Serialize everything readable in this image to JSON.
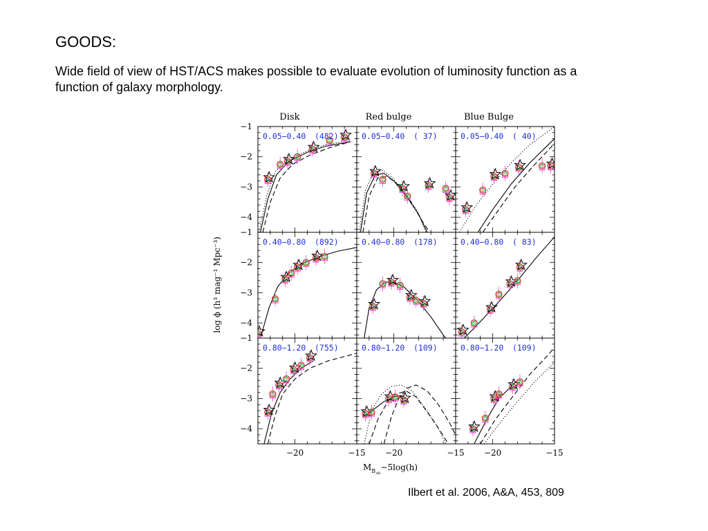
{
  "slide": {
    "title": "GOODS:",
    "text": "Wide field of view of HST/ACS makes possible to evaluate evolution of luminosity function as a function of galaxy morphology.",
    "citation": "Ilbert et al. 2006, A&A, 453, 809"
  },
  "colors": {
    "panel_label": "#1f2fd6",
    "model_line": "#000000",
    "circle_points": "#e8342d",
    "square_points": "#e14ce0",
    "triangle_points": "#3ccc2e",
    "star_points": "#000000"
  },
  "chart_data": {
    "type": "scatter",
    "layout": "3x3 grid of panels with shared axes",
    "column_titles": [
      "Disk",
      "Red bulge",
      "Blue Bulge"
    ],
    "xlabel_main": "M",
    "xlabel_sub": "B",
    "xlabel_subsub": "AB",
    "xlabel_rest": "−5log(h)",
    "ylabel": "log ϕ  (h³ mag⁻¹ Mpc⁻³)",
    "xlim": [
      -23,
      -15
    ],
    "ylim": [
      -4.5,
      -1
    ],
    "x_ticks": [
      "−20",
      "−15"
    ],
    "x_tick_values": [
      -20,
      -15
    ],
    "y_ticks": [
      "−1",
      "−2",
      "−3",
      "−4"
    ],
    "y_tick_values": [
      -1,
      -2,
      -3,
      -4
    ],
    "grid": false,
    "panels": [
      {
        "row": 0,
        "col": 0,
        "z_range": "0.05−0.40",
        "count": "(482)",
        "points": [
          [
            -22.2,
            -2.75
          ],
          [
            -21.2,
            -2.25
          ],
          [
            -20.6,
            -2.15
          ],
          [
            -19.8,
            -2.0
          ],
          [
            -18.6,
            -1.75
          ],
          [
            -17.2,
            -1.45
          ],
          [
            -16.0,
            -1.35
          ]
        ],
        "lines": [
          {
            "style": "solid",
            "points": [
              [
                -22.8,
                -4.5
              ],
              [
                -22.2,
                -3.4
              ],
              [
                -21.5,
                -2.6
              ],
              [
                -20.5,
                -2.15
              ],
              [
                -19.0,
                -1.85
              ],
              [
                -17.5,
                -1.65
              ],
              [
                -15.5,
                -1.5
              ]
            ]
          },
          {
            "style": "dashed",
            "points": [
              [
                -22.6,
                -4.5
              ],
              [
                -22.0,
                -3.5
              ],
              [
                -21.2,
                -2.7
              ],
              [
                -20.2,
                -2.25
              ],
              [
                -18.8,
                -1.95
              ],
              [
                -17.2,
                -1.7
              ],
              [
                -15.5,
                -1.5
              ]
            ]
          },
          {
            "style": "dotted",
            "points": [
              [
                -22.9,
                -4.5
              ],
              [
                -22.3,
                -3.3
              ],
              [
                -21.6,
                -2.5
              ],
              [
                -20.6,
                -2.1
              ],
              [
                -19.1,
                -1.82
              ],
              [
                -17.5,
                -1.6
              ],
              [
                -15.5,
                -1.45
              ]
            ]
          }
        ]
      },
      {
        "row": 0,
        "col": 1,
        "z_range": "0.05−0.40",
        "count": "(  37)",
        "points": [
          [
            -21.6,
            -2.55
          ],
          [
            -20.9,
            -2.75
          ],
          [
            -19.3,
            -3.05
          ],
          [
            -18.9,
            -3.3
          ],
          [
            -17.2,
            -2.95
          ],
          [
            -15.8,
            -3.05
          ],
          [
            -15.5,
            -3.35
          ]
        ],
        "lines": [
          {
            "style": "solid",
            "points": [
              [
                -22.7,
                -4.5
              ],
              [
                -22.2,
                -3.2
              ],
              [
                -21.5,
                -2.6
              ],
              [
                -20.8,
                -2.55
              ],
              [
                -20.0,
                -2.8
              ],
              [
                -19.0,
                -3.3
              ],
              [
                -18.0,
                -3.9
              ],
              [
                -17.3,
                -4.5
              ]
            ]
          },
          {
            "style": "dashed",
            "points": [
              [
                -22.5,
                -4.5
              ],
              [
                -22.0,
                -3.3
              ],
              [
                -21.3,
                -2.7
              ],
              [
                -20.5,
                -2.65
              ],
              [
                -19.6,
                -2.95
              ],
              [
                -18.6,
                -3.5
              ],
              [
                -17.6,
                -4.2
              ],
              [
                -17.1,
                -4.5
              ]
            ]
          },
          {
            "style": "dotted",
            "points": [
              [
                -22.8,
                -4.5
              ],
              [
                -22.3,
                -3.1
              ],
              [
                -21.6,
                -2.5
              ],
              [
                -20.9,
                -2.45
              ],
              [
                -20.1,
                -2.7
              ],
              [
                -19.1,
                -3.2
              ],
              [
                -18.1,
                -3.8
              ],
              [
                -17.4,
                -4.5
              ]
            ]
          }
        ]
      },
      {
        "row": 0,
        "col": 2,
        "z_range": "0.05−0.40",
        "count": "(  40)",
        "points": [
          [
            -22.2,
            -3.75
          ],
          [
            -20.8,
            -3.1
          ],
          [
            -19.9,
            -2.65
          ],
          [
            -19.0,
            -2.55
          ],
          [
            -17.9,
            -2.35
          ],
          [
            -16.0,
            -2.3
          ],
          [
            -15.3,
            -2.3
          ]
        ],
        "lines": [
          {
            "style": "solid",
            "points": [
              [
                -21.2,
                -4.5
              ],
              [
                -20.0,
                -3.75
              ],
              [
                -18.5,
                -2.9
              ],
              [
                -17.0,
                -2.2
              ],
              [
                -15.5,
                -1.6
              ],
              [
                -15.0,
                -1.4
              ]
            ]
          },
          {
            "style": "dashed",
            "points": [
              [
                -20.8,
                -4.5
              ],
              [
                -19.6,
                -3.8
              ],
              [
                -18.2,
                -3.0
              ],
              [
                -16.7,
                -2.3
              ],
              [
                -15.2,
                -1.65
              ],
              [
                -15.0,
                -1.55
              ]
            ]
          },
          {
            "style": "dotted",
            "points": [
              [
                -22.7,
                -4.5
              ],
              [
                -21.5,
                -3.7
              ],
              [
                -20.0,
                -2.9
              ],
              [
                -18.5,
                -2.2
              ],
              [
                -17.0,
                -1.6
              ],
              [
                -15.5,
                -1.15
              ],
              [
                -15.0,
                -1.0
              ]
            ]
          }
        ]
      },
      {
        "row": 1,
        "col": 0,
        "z_range": "0.40−0.80",
        "count": "(892)",
        "points": [
          [
            -23.0,
            -4.35
          ],
          [
            -21.6,
            -3.2
          ],
          [
            -20.8,
            -2.55
          ],
          [
            -20.3,
            -2.35
          ],
          [
            -19.8,
            -2.15
          ],
          [
            -19.1,
            -2.0
          ],
          [
            -18.3,
            -1.85
          ],
          [
            -17.6,
            -1.8
          ]
        ],
        "lines": [
          {
            "style": "solid",
            "points": [
              [
                -22.8,
                -4.5
              ],
              [
                -22.1,
                -3.5
              ],
              [
                -21.4,
                -2.8
              ],
              [
                -20.5,
                -2.35
              ],
              [
                -19.5,
                -2.05
              ],
              [
                -18.0,
                -1.8
              ],
              [
                -16.5,
                -1.62
              ],
              [
                -15.0,
                -1.5
              ]
            ]
          }
        ]
      },
      {
        "row": 1,
        "col": 1,
        "z_range": "0.40−0.80",
        "count": "(178)",
        "points": [
          [
            -21.7,
            -3.45
          ],
          [
            -20.9,
            -2.7
          ],
          [
            -20.2,
            -2.65
          ],
          [
            -19.5,
            -2.75
          ],
          [
            -18.7,
            -3.15
          ],
          [
            -18.2,
            -3.25
          ],
          [
            -17.6,
            -3.35
          ]
        ],
        "lines": [
          {
            "style": "solid",
            "points": [
              [
                -22.4,
                -4.5
              ],
              [
                -22.0,
                -3.5
              ],
              [
                -21.4,
                -2.9
              ],
              [
                -20.7,
                -2.65
              ],
              [
                -20.0,
                -2.65
              ],
              [
                -19.2,
                -2.8
              ],
              [
                -18.2,
                -3.2
              ],
              [
                -17.0,
                -3.8
              ],
              [
                -16.0,
                -4.4
              ],
              [
                -15.8,
                -4.5
              ]
            ]
          }
        ]
      },
      {
        "row": 1,
        "col": 2,
        "z_range": "0.40−0.80",
        "count": "(  83)",
        "points": [
          [
            -22.5,
            -4.3
          ],
          [
            -21.5,
            -4.0
          ],
          [
            -20.2,
            -3.55
          ],
          [
            -19.5,
            -3.05
          ],
          [
            -18.6,
            -2.7
          ],
          [
            -18.0,
            -2.6
          ],
          [
            -17.8,
            -2.15
          ]
        ],
        "lines": [
          {
            "style": "solid",
            "points": [
              [
                -22.3,
                -4.5
              ],
              [
                -21.0,
                -3.95
              ],
              [
                -19.5,
                -3.3
              ],
              [
                -18.0,
                -2.6
              ],
              [
                -16.5,
                -1.85
              ],
              [
                -15.0,
                -1.15
              ]
            ]
          }
        ]
      },
      {
        "row": 2,
        "col": 0,
        "z_range": "0.80−1.20",
        "count": "(755)",
        "points": [
          [
            -22.2,
            -3.45
          ],
          [
            -21.8,
            -2.85
          ],
          [
            -21.3,
            -2.55
          ],
          [
            -20.7,
            -2.35
          ],
          [
            -20.1,
            -2.05
          ],
          [
            -19.5,
            -1.9
          ],
          [
            -18.8,
            -1.65
          ]
        ],
        "lines": [
          {
            "style": "solid",
            "points": [
              [
                -22.5,
                -4.5
              ],
              [
                -21.9,
                -3.5
              ],
              [
                -21.2,
                -2.8
              ],
              [
                -20.4,
                -2.35
              ],
              [
                -19.5,
                -2.0
              ],
              [
                -18.5,
                -1.75
              ]
            ]
          },
          {
            "style": "dashed",
            "points": [
              [
                -22.2,
                -4.5
              ],
              [
                -21.6,
                -3.55
              ],
              [
                -21.0,
                -2.85
              ],
              [
                -20.0,
                -2.35
              ],
              [
                -18.8,
                -2.0
              ],
              [
                -17.3,
                -1.75
              ],
              [
                -15.0,
                -1.5
              ]
            ]
          }
        ]
      },
      {
        "row": 2,
        "col": 1,
        "z_range": "0.80−1.20",
        "count": "(109)",
        "points": [
          [
            -22.3,
            -3.5
          ],
          [
            -21.8,
            -3.45
          ],
          [
            -20.4,
            -3.0
          ],
          [
            -19.9,
            -2.95
          ],
          [
            -19.2,
            -3.05
          ]
        ],
        "lines": [
          {
            "style": "solid",
            "points": [
              [
                -22.3,
                -3.6
              ],
              [
                -21.6,
                -3.35
              ],
              [
                -20.8,
                -3.1
              ],
              [
                -20.0,
                -2.95
              ],
              [
                -19.4,
                -2.9
              ],
              [
                -19.0,
                -3.0
              ]
            ]
          },
          {
            "style": "dashed",
            "points": [
              [
                -22.0,
                -4.5
              ],
              [
                -21.3,
                -3.7
              ],
              [
                -20.5,
                -3.1
              ],
              [
                -19.8,
                -2.85
              ],
              [
                -19.0,
                -2.75
              ],
              [
                -18.2,
                -2.95
              ],
              [
                -17.2,
                -3.5
              ],
              [
                -16.2,
                -4.1
              ],
              [
                -15.6,
                -4.5
              ]
            ]
          },
          {
            "style": "dashed",
            "points": [
              [
                -20.8,
                -4.5
              ],
              [
                -20.2,
                -3.6
              ],
              [
                -19.6,
                -3.0
              ],
              [
                -18.9,
                -2.65
              ],
              [
                -18.2,
                -2.55
              ],
              [
                -17.3,
                -2.75
              ],
              [
                -16.4,
                -3.2
              ],
              [
                -15.5,
                -3.8
              ],
              [
                -15.0,
                -4.2
              ]
            ]
          },
          {
            "style": "dotted",
            "points": [
              [
                -22.4,
                -4.5
              ],
              [
                -21.8,
                -3.4
              ],
              [
                -21.0,
                -2.85
              ],
              [
                -20.2,
                -2.6
              ],
              [
                -19.4,
                -2.55
              ],
              [
                -18.5,
                -2.75
              ],
              [
                -17.5,
                -3.3
              ],
              [
                -16.5,
                -3.9
              ],
              [
                -15.8,
                -4.5
              ]
            ]
          }
        ]
      },
      {
        "row": 2,
        "col": 2,
        "z_range": "0.80−1.20",
        "count": "(109)",
        "points": [
          [
            -21.6,
            -4.0
          ],
          [
            -20.6,
            -3.65
          ],
          [
            -19.9,
            -3.0
          ],
          [
            -19.5,
            -2.85
          ],
          [
            -18.4,
            -2.6
          ],
          [
            -17.8,
            -2.45
          ]
        ],
        "lines": [
          {
            "style": "solid",
            "points": [
              [
                -21.5,
                -4.5
              ],
              [
                -20.5,
                -3.7
              ],
              [
                -19.5,
                -3.0
              ],
              [
                -18.5,
                -2.6
              ],
              [
                -18.0,
                -2.4
              ]
            ]
          },
          {
            "style": "dashed",
            "points": [
              [
                -21.0,
                -4.5
              ],
              [
                -19.8,
                -3.7
              ],
              [
                -18.5,
                -3.0
              ],
              [
                -17.0,
                -2.2
              ],
              [
                -15.5,
                -1.55
              ],
              [
                -15.0,
                -1.3
              ]
            ]
          },
          {
            "style": "dotted",
            "points": [
              [
                -20.7,
                -4.5
              ],
              [
                -19.5,
                -3.85
              ],
              [
                -18.0,
                -3.1
              ],
              [
                -16.5,
                -2.4
              ],
              [
                -15.0,
                -1.8
              ]
            ]
          }
        ]
      }
    ]
  }
}
